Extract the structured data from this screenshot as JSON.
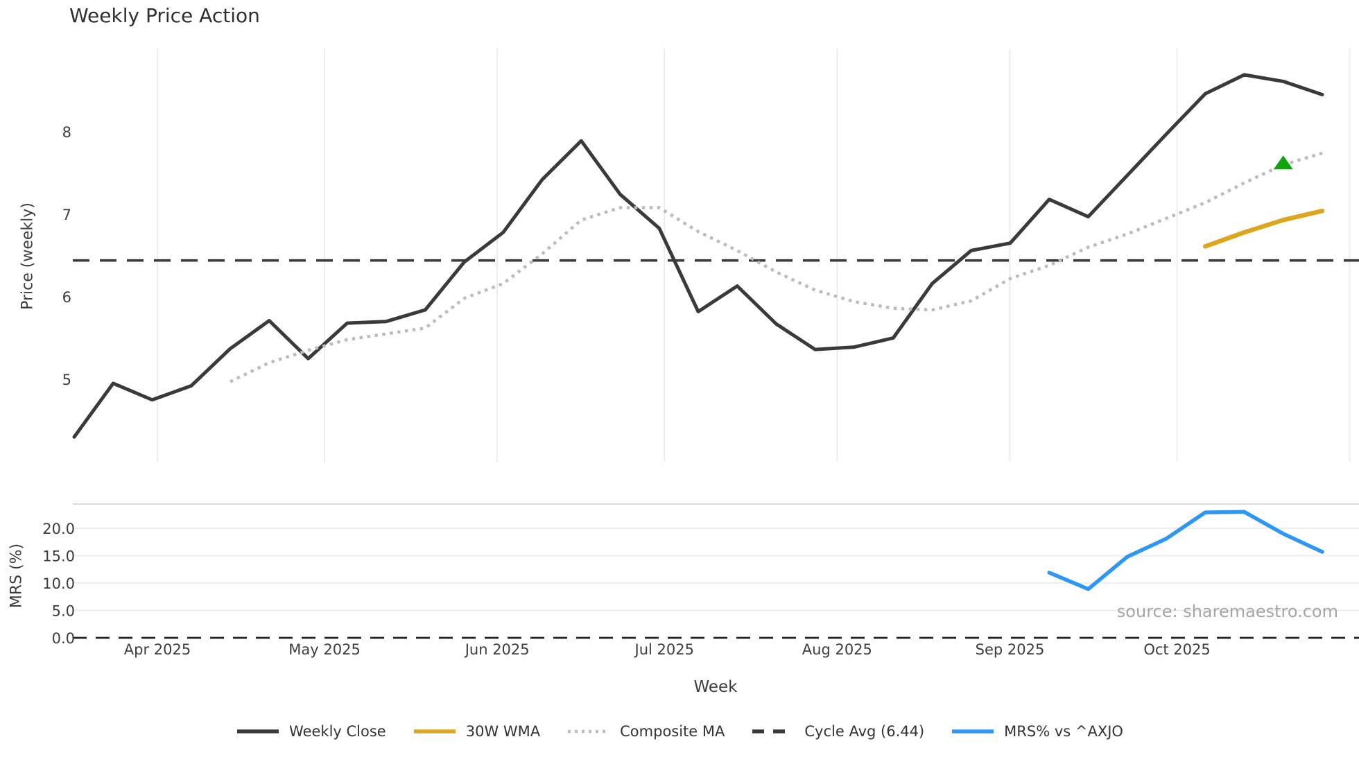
{
  "title": "Weekly Price Action",
  "xlabel": "Week",
  "source_text": "source: sharemaestro.com",
  "price_panel": {
    "ylabel": "Price (weekly)",
    "yticks": [
      {
        "v": 5,
        "label": "5"
      },
      {
        "v": 6,
        "label": "6"
      },
      {
        "v": 7,
        "label": "7"
      },
      {
        "v": 8,
        "label": "8"
      }
    ]
  },
  "mrs_panel": {
    "ylabel": "MRS (%)",
    "yticks": [
      {
        "v": 0,
        "label": "0.0"
      },
      {
        "v": 5,
        "label": "5.0"
      },
      {
        "v": 10,
        "label": "10.0"
      },
      {
        "v": 15,
        "label": "15.0"
      },
      {
        "v": 20,
        "label": "20.0"
      }
    ]
  },
  "x_month_labels": [
    "Apr 2025",
    "May 2025",
    "Jun 2025",
    "Jul 2025",
    "Aug 2025",
    "Sep 2025",
    "Oct 2025"
  ],
  "colors": {
    "weekly_close": "#3a3a3a",
    "wma_30w": "#DCA71F",
    "composite_ma": "#bcbcbc",
    "cycle_avg": "#3a3a3a",
    "mrs": "#2E96F3",
    "signal_green": "#0EA50E",
    "gridline": "#ebebeb",
    "spine": "#cfcfcf",
    "zero_line": "#222222"
  },
  "legend": [
    {
      "label": "Weekly Close",
      "style": "solid",
      "color": "#3a3a3a"
    },
    {
      "label": "30W WMA",
      "style": "solid",
      "color": "#DCA71F"
    },
    {
      "label": "Composite MA",
      "style": "dotted",
      "color": "#bcbcbc"
    },
    {
      "label": "Cycle Avg (6.44)",
      "style": "dashed",
      "color": "#3a3a3a"
    },
    {
      "label": "MRS% vs ^AXJO",
      "style": "solid",
      "color": "#2E96F3"
    }
  ],
  "chart_data": {
    "type": "line",
    "x_axis": {
      "unit": "weeks",
      "month_ticks": [
        "Apr 2025",
        "May 2025",
        "Jun 2025",
        "Jul 2025",
        "Aug 2025",
        "Sep 2025",
        "Oct 2025"
      ],
      "start": "mid-March 2025"
    },
    "price_ylim": [
      4.0,
      9.0
    ],
    "mrs_ylim": [
      -1.3,
      24.4
    ],
    "cycle_avg_value": 6.44,
    "series": [
      {
        "name": "Weekly Close",
        "panel": "price",
        "style": "solid",
        "start_week": 0,
        "values": [
          4.3,
          4.95,
          4.75,
          4.92,
          5.37,
          5.71,
          5.25,
          5.68,
          5.7,
          5.84,
          6.42,
          6.78,
          7.42,
          7.89,
          7.24,
          6.83,
          5.82,
          6.13,
          5.67,
          5.36,
          5.39,
          5.5,
          6.16,
          6.56,
          6.65,
          7.18,
          6.97,
          7.47,
          7.97,
          8.46,
          8.69,
          8.61,
          8.45
        ]
      },
      {
        "name": "Composite MA",
        "panel": "price",
        "style": "dotted",
        "start_week": 4,
        "values": [
          4.97,
          5.2,
          5.35,
          5.48,
          5.55,
          5.62,
          5.98,
          6.16,
          6.52,
          6.93,
          7.08,
          7.08,
          6.79,
          6.56,
          6.3,
          6.08,
          5.94,
          5.86,
          5.84,
          5.95,
          6.22,
          6.38,
          6.6,
          6.76,
          6.95,
          7.14,
          7.38,
          7.6,
          7.74
        ]
      },
      {
        "name": "30W WMA",
        "panel": "price",
        "style": "solid",
        "start_week": 29,
        "values": [
          6.61,
          6.78,
          6.93,
          7.04
        ]
      },
      {
        "name": "MRS% vs ^AXJO",
        "panel": "mrs",
        "style": "solid",
        "start_week": 25,
        "values": [
          11.9,
          8.9,
          14.8,
          18.1,
          22.9,
          23.0,
          19.0,
          15.7
        ]
      }
    ],
    "marker": {
      "shape": "triangle-up",
      "meaning": "buy-signal",
      "week": 31,
      "value": 7.62
    }
  }
}
